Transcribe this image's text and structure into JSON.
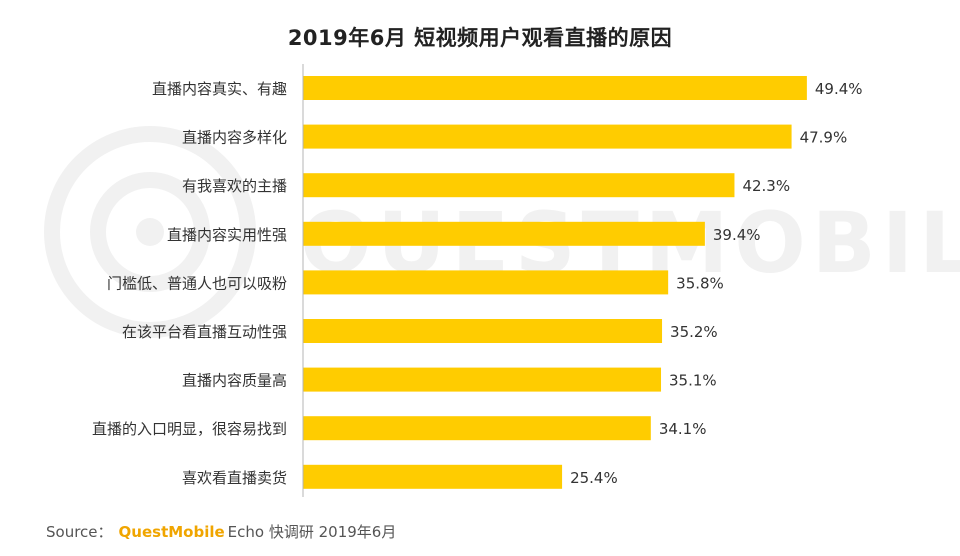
{
  "title": "2019年6月 短视频用户观看直播的原因",
  "watermark_text": "QUESTMOBILE",
  "source": {
    "label": "Source：",
    "brand": "QuestMobile",
    "rest": "Echo 快调研 2019年6月"
  },
  "colors": {
    "bar": "#FFCC00",
    "axis": "#b5b5b5",
    "text": "#333333",
    "brand": "#f0a500",
    "watermark": "#f1f1f1"
  },
  "chart_data": {
    "type": "bar",
    "orientation": "horizontal",
    "title": "2019年6月 短视频用户观看直播的原因",
    "xlim": [
      0,
      50
    ],
    "value_suffix": "%",
    "categories": [
      "直播内容真实、有趣",
      "直播内容多样化",
      "有我喜欢的主播",
      "直播内容实用性强",
      "门槛低、普通人也可以吸粉",
      "在该平台看直播互动性强",
      "直播内容质量高",
      "直播的入口明显，很容易找到",
      "喜欢看直播卖货"
    ],
    "values": [
      49.4,
      47.9,
      42.3,
      39.4,
      35.8,
      35.2,
      35.1,
      34.1,
      25.4
    ],
    "data_labels": [
      "49.4%",
      "47.9%",
      "42.3%",
      "39.4%",
      "35.8%",
      "35.2%",
      "35.1%",
      "34.1%",
      "25.4%"
    ],
    "grid": false,
    "legend": "none"
  }
}
